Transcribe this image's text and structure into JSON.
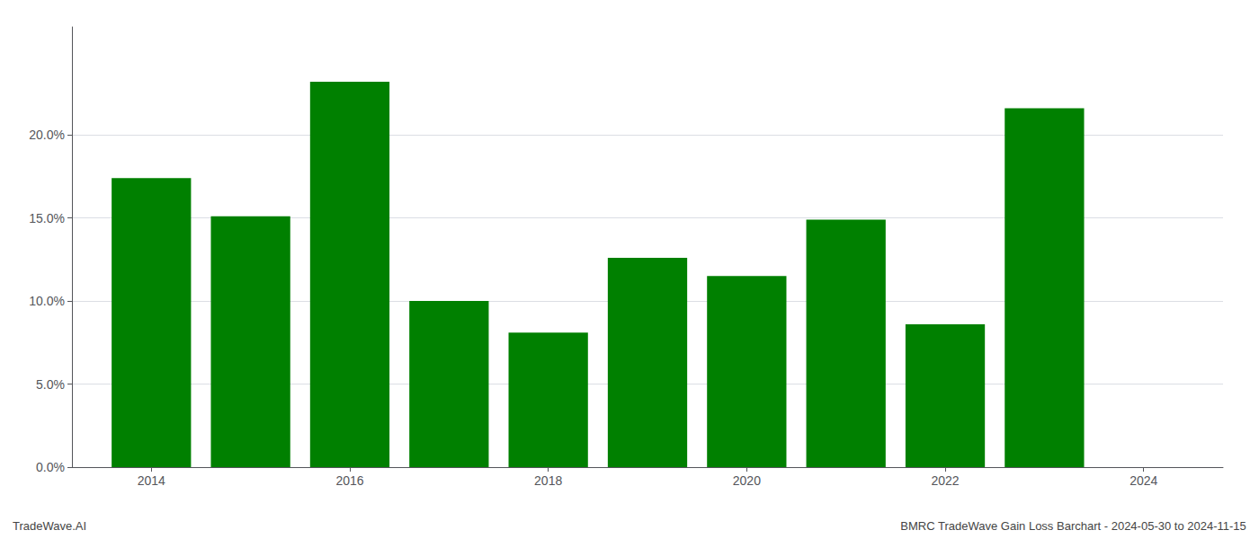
{
  "chart_data": {
    "type": "bar",
    "x": [
      2014,
      2015,
      2016,
      2017,
      2018,
      2019,
      2020,
      2021,
      2022,
      2023
    ],
    "values": [
      0.174,
      0.151,
      0.232,
      0.1,
      0.081,
      0.126,
      0.115,
      0.149,
      0.086,
      0.216
    ],
    "color": "#008000",
    "xlim": [
      2013.2,
      2024.8
    ],
    "xticks": [
      2014,
      2016,
      2018,
      2020,
      2022,
      2024
    ],
    "ylim": [
      0,
      0.265
    ],
    "yticks": [
      {
        "value": 0.0,
        "label": "0.0%"
      },
      {
        "value": 0.05,
        "label": "5.0%"
      },
      {
        "value": 0.1,
        "label": "10.0%"
      },
      {
        "value": 0.15,
        "label": "15.0%"
      },
      {
        "value": 0.2,
        "label": "20.0%"
      }
    ],
    "grid": true,
    "annotations": [
      "TradeWave.AI",
      "BMRC TradeWave Gain Loss Barchart - 2024-05-30 to 2024-11-15"
    ]
  }
}
